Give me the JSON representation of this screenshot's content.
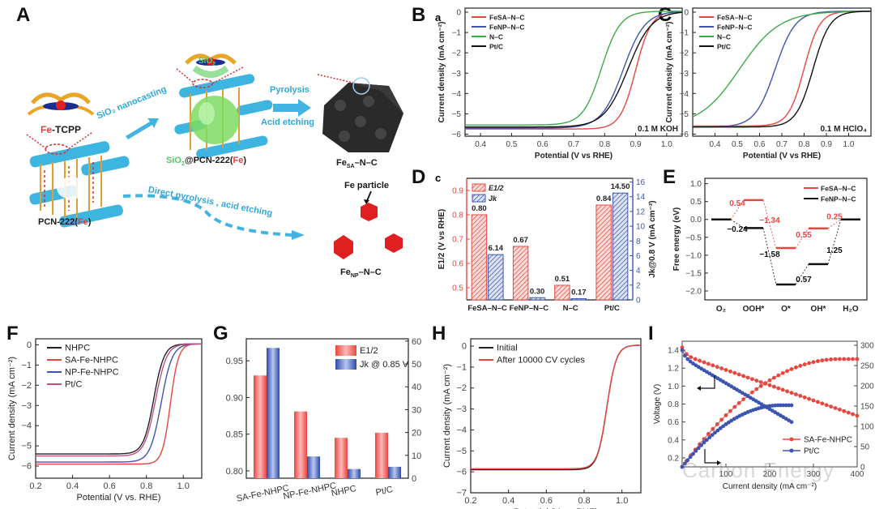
{
  "panels": {
    "A": {
      "label": "A",
      "fe_tcpp_prefix": "Fe",
      "fe_tcpp_suffix": "-TCPP",
      "sio2_label": "SiO",
      "sio2_sub": "2",
      "step1": "SiO₂ nanocasting",
      "step2a": "Pyrolysis",
      "step2b": "Acid etching",
      "mid_product_a": "SiO",
      "mid_product_sub": "2",
      "mid_product_b": "@PCN-222(",
      "mid_product_fe": "Fe",
      "mid_product_c": ")",
      "pcn_a": "PCN-222(",
      "pcn_fe": "Fe",
      "pcn_c": ")",
      "direct_route": "Direct pyrolysis , acid etching",
      "fe_particle": "Fe particle",
      "fesa_main": "Fe",
      "fesa_sub": "SA",
      "fesa_tail": "–N–C",
      "fenp_main": "Fe",
      "fenp_sub": "NP",
      "fenp_tail": "–N–C"
    },
    "B": {
      "label": "B",
      "sublabel": "a"
    },
    "C": {
      "label": "C"
    },
    "D": {
      "label": "D",
      "sublabel": "c"
    },
    "E": {
      "label": "E"
    },
    "F": {
      "label": "F"
    },
    "G": {
      "label": "G"
    },
    "H": {
      "label": "H"
    },
    "I": {
      "label": "I"
    }
  },
  "watermark": "Carbon Energy",
  "chart_data": [
    {
      "id": "B",
      "type": "line",
      "title": "",
      "xlabel": "Potential (V vs RHE)",
      "ylabel": "Current density (mA cm⁻²)",
      "xlim": [
        0.35,
        1.05
      ],
      "ylim": [
        -6.1,
        0.2
      ],
      "xticks": [
        0.4,
        0.5,
        0.6,
        0.7,
        0.8,
        0.9,
        1.0
      ],
      "yticks": [
        0,
        -1,
        -2,
        -3,
        -4,
        -5,
        -6
      ],
      "annotation": "0.1 M KOH",
      "legend_position": "top-left",
      "series": [
        {
          "name": "FeSA–N–C",
          "color": "#e8473f",
          "halfwave": 0.9,
          "limit": -5.8,
          "width": 0.025
        },
        {
          "name": "FeNP–N–C",
          "color": "#3b55b0",
          "halfwave": 0.86,
          "limit": -5.75,
          "width": 0.035
        },
        {
          "name": "N–C",
          "color": "#3daa4a",
          "halfwave": 0.79,
          "limit": -5.6,
          "width": 0.03
        },
        {
          "name": "Pt/C",
          "color": "#111111",
          "halfwave": 0.875,
          "limit": -5.7,
          "width": 0.038
        }
      ]
    },
    {
      "id": "C",
      "type": "line",
      "xlabel": "Potential (V vs RHE)",
      "ylabel": "Current density (mA cm⁻²)",
      "xlim": [
        0.3,
        1.1
      ],
      "ylim": [
        -6.1,
        0.2
      ],
      "xticks": [
        0.4,
        0.5,
        0.6,
        0.7,
        0.8,
        0.9,
        1.0
      ],
      "yticks": [
        0,
        -1,
        -2,
        -3,
        -4,
        -5,
        -6
      ],
      "annotation": "0.1 M HClO₄",
      "legend_position": "top-left",
      "series": [
        {
          "name": "FeSA–N–C",
          "color": "#e8473f",
          "halfwave": 0.8,
          "limit": -5.65,
          "width": 0.035
        },
        {
          "name": "FeNP–N–C",
          "color": "#3b55b0",
          "halfwave": 0.67,
          "limit": -5.7,
          "width": 0.045
        },
        {
          "name": "N–C",
          "color": "#3daa4a",
          "halfwave": 0.51,
          "limit": -5.7,
          "width": 0.09
        },
        {
          "name": "Pt/C",
          "color": "#111111",
          "halfwave": 0.84,
          "limit": -5.7,
          "width": 0.038
        }
      ]
    },
    {
      "id": "D",
      "type": "bar",
      "categories": [
        "FeSA–N–C",
        "FeNP–N–C",
        "N–C",
        "Pt/C"
      ],
      "ylabel": "E1/2 (V vs RHE)",
      "y2label": "Jk@0.8 V (mA cm⁻²)",
      "ylim": [
        0.45,
        0.95
      ],
      "y2lim": [
        0,
        16.5
      ],
      "yticks": [
        0.5,
        0.6,
        0.7,
        0.8,
        0.9
      ],
      "y2ticks": [
        0,
        2,
        4,
        6,
        8,
        10,
        12,
        14,
        16
      ],
      "series": [
        {
          "name": "E1/2",
          "color": "#e8473f",
          "values": [
            0.8,
            0.67,
            0.51,
            0.84
          ],
          "labels": [
            "0.80",
            "0.67",
            "0.51",
            "0.84"
          ]
        },
        {
          "name": "Jk",
          "color": "#3b55b0",
          "values": [
            6.14,
            0.3,
            0.17,
            14.5
          ],
          "labels": [
            "6.14",
            "0.30",
            "0.17",
            "14.50"
          ]
        }
      ],
      "legend_position": "top-left"
    },
    {
      "id": "E",
      "type": "line",
      "ylabel": "Free energy (eV)",
      "ylim": [
        -2.25,
        1.15
      ],
      "yticks": [
        1.0,
        0.5,
        0.0,
        -0.5,
        -1.0,
        -1.5,
        -2.0
      ],
      "categories": [
        "O₂",
        "OOH*",
        "O*",
        "OH*",
        "H₂O"
      ],
      "legend_position": "top-right",
      "series": [
        {
          "name": "FeSA–N–C",
          "color": "#e8473f",
          "values": [
            0,
            0.54,
            -0.8,
            -0.25,
            0
          ],
          "step_labels": [
            "0.54",
            "-1.34",
            "0.55",
            "0.25"
          ]
        },
        {
          "name": "FeNP–N–C",
          "color": "#111111",
          "values": [
            0,
            -0.24,
            -1.82,
            -1.25,
            0
          ],
          "step_labels": [
            "-0.24",
            "-1.58",
            "0.57",
            "1.25"
          ]
        }
      ]
    },
    {
      "id": "F",
      "type": "line",
      "xlabel": "Potential (V vs. RHE)",
      "ylabel": "Current density (mA cm⁻²)",
      "xlim": [
        0.2,
        1.1
      ],
      "ylim": [
        -6.6,
        0.3
      ],
      "xticks": [
        0.2,
        0.4,
        0.6,
        0.8,
        1.0
      ],
      "yticks": [
        0,
        -1,
        -2,
        -3,
        -4,
        -5,
        -6
      ],
      "legend_position": "top-left",
      "series": [
        {
          "name": "NHPC",
          "color": "#222222",
          "halfwave": 0.84,
          "limit": -5.45,
          "width": 0.028
        },
        {
          "name": "SA-Fe-NHPC",
          "color": "#e8473f",
          "halfwave": 0.93,
          "limit": -5.95,
          "width": 0.022
        },
        {
          "name": "NP-Fe-NHPC",
          "color": "#3b55b0",
          "halfwave": 0.88,
          "limit": -5.85,
          "width": 0.03
        },
        {
          "name": "Pt/C",
          "color": "#c0508a",
          "halfwave": 0.85,
          "limit": -5.55,
          "width": 0.03
        }
      ]
    },
    {
      "id": "G",
      "type": "bar",
      "categories": [
        "SA-Fe-NHPC",
        "NP-Fe-NHPC",
        "NHPC",
        "Pt/C"
      ],
      "ylim": [
        0.79,
        0.98
      ],
      "y2lim": [
        0,
        61
      ],
      "yticks": [
        0.8,
        0.85,
        0.9,
        0.95
      ],
      "y2ticks": [
        0,
        10,
        20,
        30,
        40,
        50,
        60
      ],
      "series": [
        {
          "name": "E1/2",
          "color": "#e8473f",
          "values": [
            0.93,
            0.881,
            0.845,
            0.852
          ]
        },
        {
          "name": "Jk @ 0.85 V",
          "color": "#3b55b0",
          "values": [
            57,
            9.5,
            4,
            5
          ]
        }
      ],
      "legend_position": "top-right"
    },
    {
      "id": "H",
      "type": "line",
      "xlabel": "Potential (V vs. RHE)",
      "ylabel": "Current density (mA cm⁻²)",
      "xlim": [
        0.2,
        1.1
      ],
      "ylim": [
        -7,
        0.35
      ],
      "xticks": [
        0.2,
        0.4,
        0.6,
        0.8,
        1.0
      ],
      "yticks": [
        0,
        -1,
        -2,
        -3,
        -4,
        -5,
        -6,
        -7
      ],
      "legend_position": "top-left",
      "series": [
        {
          "name": "Initial",
          "color": "#222222",
          "halfwave": 0.92,
          "limit": -5.95,
          "width": 0.025
        },
        {
          "name": "After 10000 CV cycles",
          "color": "#e8473f",
          "halfwave": 0.92,
          "limit": -5.9,
          "width": 0.025
        }
      ]
    },
    {
      "id": "I",
      "type": "scatter",
      "xlabel": "Current density (mA cm⁻²)",
      "ylabel": "Voltage (V)",
      "y2label": "Power density (mW cm⁻²)",
      "xlim": [
        0,
        400
      ],
      "ylim": [
        0.1,
        1.5
      ],
      "y2lim": [
        0,
        310
      ],
      "xticks": [
        100,
        200,
        300,
        400
      ],
      "yticks": [
        0.2,
        0.4,
        0.6,
        0.8,
        1.0,
        1.2,
        1.4
      ],
      "y2ticks": [
        0,
        50,
        100,
        150,
        200,
        250,
        300
      ],
      "legend_position": "bottom-right",
      "series": [
        {
          "name": "SA-Fe-NHPC",
          "color": "#e8473f",
          "max_current": 400,
          "v0": 1.35,
          "v_end": 0.67,
          "peak_power": 266
        },
        {
          "name": "Pt/C",
          "color": "#3b55b0",
          "max_current": 250,
          "v0": 1.32,
          "v_end": 0.6,
          "peak_power": 152
        }
      ]
    }
  ]
}
